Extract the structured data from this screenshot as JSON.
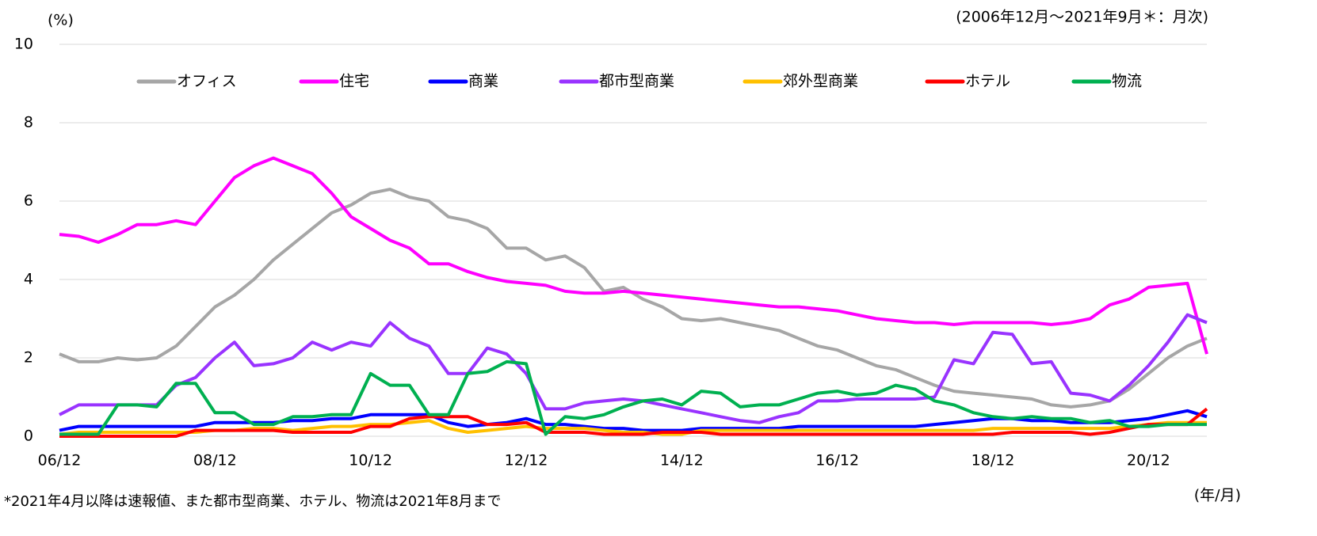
{
  "chart_data": {
    "type": "line",
    "y_unit_label": "(%)",
    "subtitle": "(2006年12月～2021年9月＊：月次)",
    "x_axis_label": "(年/月)",
    "footnote": "*2021年4月以降は速報値、また都市型商業、ホテル、物流は2021年8月まで",
    "categories": [
      "06/12",
      null,
      null,
      null,
      null,
      null,
      null,
      null,
      "08/12",
      null,
      null,
      null,
      null,
      null,
      null,
      null,
      "10/12",
      null,
      null,
      null,
      null,
      null,
      null,
      null,
      "12/12",
      null,
      null,
      null,
      null,
      null,
      null,
      null,
      "14/12",
      null,
      null,
      null,
      null,
      null,
      null,
      null,
      "16/12",
      null,
      null,
      null,
      null,
      null,
      null,
      null,
      "18/12",
      null,
      null,
      null,
      null,
      null,
      null,
      null,
      "20/12",
      null,
      null,
      null
    ],
    "ylim": [
      0,
      10
    ],
    "yticks": [
      0,
      2,
      4,
      6,
      8,
      10
    ],
    "grid": true,
    "legend": "top",
    "series": [
      {
        "name": "オフィス",
        "color": "#a6a6a6",
        "values": [
          2.1,
          1.9,
          1.9,
          2.0,
          1.95,
          2.0,
          2.3,
          2.8,
          3.3,
          3.6,
          4.0,
          4.5,
          4.9,
          5.3,
          5.7,
          5.9,
          6.2,
          6.3,
          6.1,
          6.0,
          5.6,
          5.5,
          5.3,
          4.8,
          4.8,
          4.5,
          4.6,
          4.3,
          3.7,
          3.8,
          3.5,
          3.3,
          3.0,
          2.95,
          3.0,
          2.9,
          2.8,
          2.7,
          2.5,
          2.3,
          2.2,
          2.0,
          1.8,
          1.7,
          1.5,
          1.3,
          1.15,
          1.1,
          1.05,
          1.0,
          0.95,
          0.8,
          0.75,
          0.8,
          0.9,
          1.2,
          1.6,
          2.0,
          2.3,
          2.5
        ]
      },
      {
        "name": "住宅",
        "color": "#ff00ff",
        "values": [
          5.15,
          5.1,
          4.95,
          5.15,
          5.4,
          5.4,
          5.5,
          5.4,
          6.0,
          6.6,
          6.9,
          7.1,
          6.9,
          6.7,
          6.2,
          5.6,
          5.3,
          5.0,
          4.8,
          4.4,
          4.4,
          4.2,
          4.05,
          3.95,
          3.9,
          3.85,
          3.7,
          3.65,
          3.65,
          3.7,
          3.65,
          3.6,
          3.55,
          3.5,
          3.45,
          3.4,
          3.35,
          3.3,
          3.3,
          3.25,
          3.2,
          3.1,
          3.0,
          2.95,
          2.9,
          2.9,
          2.85,
          2.9,
          2.9,
          2.9,
          2.9,
          2.85,
          2.9,
          3.0,
          3.35,
          3.5,
          3.8,
          3.85,
          3.9,
          2.1
        ]
      },
      {
        "name": "商業",
        "color": "#0000ff",
        "values": [
          0.15,
          0.25,
          0.25,
          0.25,
          0.25,
          0.25,
          0.25,
          0.25,
          0.35,
          0.35,
          0.35,
          0.35,
          0.4,
          0.4,
          0.45,
          0.45,
          0.55,
          0.55,
          0.55,
          0.55,
          0.35,
          0.25,
          0.3,
          0.35,
          0.45,
          0.3,
          0.3,
          0.25,
          0.2,
          0.2,
          0.15,
          0.15,
          0.15,
          0.2,
          0.2,
          0.2,
          0.2,
          0.2,
          0.25,
          0.25,
          0.25,
          0.25,
          0.25,
          0.25,
          0.25,
          0.3,
          0.35,
          0.4,
          0.45,
          0.45,
          0.4,
          0.4,
          0.35,
          0.35,
          0.35,
          0.4,
          0.45,
          0.55,
          0.65,
          0.5
        ]
      },
      {
        "name": "都市型商業",
        "color": "#9933ff",
        "values": [
          0.55,
          0.8,
          0.8,
          0.8,
          0.8,
          0.8,
          1.3,
          1.5,
          2.0,
          2.4,
          1.8,
          1.85,
          2.0,
          2.4,
          2.2,
          2.4,
          2.3,
          2.9,
          2.5,
          2.3,
          1.6,
          1.6,
          2.25,
          2.1,
          1.6,
          0.7,
          0.7,
          0.85,
          0.9,
          0.95,
          0.9,
          0.8,
          0.7,
          0.6,
          0.5,
          0.4,
          0.35,
          0.5,
          0.6,
          0.9,
          0.9,
          0.95,
          0.95,
          0.95,
          0.95,
          1.0,
          1.95,
          1.85,
          2.65,
          2.6,
          1.85,
          1.9,
          1.1,
          1.05,
          0.9,
          1.3,
          1.8,
          2.4,
          3.1,
          2.9
        ]
      },
      {
        "name": "郊外型商業",
        "color": "#ffc000",
        "values": [
          0.05,
          0.1,
          0.1,
          0.1,
          0.1,
          0.1,
          0.1,
          0.1,
          0.15,
          0.15,
          0.2,
          0.2,
          0.15,
          0.2,
          0.25,
          0.25,
          0.3,
          0.3,
          0.35,
          0.4,
          0.2,
          0.1,
          0.15,
          0.2,
          0.25,
          0.2,
          0.2,
          0.2,
          0.15,
          0.1,
          0.1,
          0.05,
          0.05,
          0.15,
          0.15,
          0.15,
          0.15,
          0.15,
          0.15,
          0.15,
          0.15,
          0.15,
          0.15,
          0.15,
          0.15,
          0.15,
          0.15,
          0.15,
          0.2,
          0.2,
          0.2,
          0.2,
          0.2,
          0.2,
          0.2,
          0.25,
          0.3,
          0.35,
          0.35,
          0.35
        ]
      },
      {
        "name": "ホテル",
        "color": "#ff0000",
        "values": [
          0,
          0,
          0,
          0,
          0,
          0,
          0,
          0.15,
          0.15,
          0.15,
          0.15,
          0.15,
          0.1,
          0.1,
          0.1,
          0.1,
          0.25,
          0.25,
          0.45,
          0.5,
          0.5,
          0.5,
          0.3,
          0.3,
          0.35,
          0.1,
          0.1,
          0.1,
          0.05,
          0.05,
          0.05,
          0.1,
          0.1,
          0.1,
          0.05,
          0.05,
          0.05,
          0.05,
          0.05,
          0.05,
          0.05,
          0.05,
          0.05,
          0.05,
          0.05,
          0.05,
          0.05,
          0.05,
          0.05,
          0.1,
          0.1,
          0.1,
          0.1,
          0.05,
          0.1,
          0.2,
          0.3,
          0.3,
          0.3,
          0.7
        ]
      },
      {
        "name": "物流",
        "color": "#00b050",
        "values": [
          0.05,
          0.05,
          0.05,
          0.8,
          0.8,
          0.75,
          1.35,
          1.35,
          0.6,
          0.6,
          0.3,
          0.3,
          0.5,
          0.5,
          0.55,
          0.55,
          1.6,
          1.3,
          1.3,
          0.55,
          0.55,
          1.6,
          1.65,
          1.9,
          1.85,
          0.05,
          0.5,
          0.45,
          0.55,
          0.75,
          0.9,
          0.95,
          0.8,
          1.15,
          1.1,
          0.75,
          0.8,
          0.8,
          0.95,
          1.1,
          1.15,
          1.05,
          1.1,
          1.3,
          1.2,
          0.9,
          0.8,
          0.6,
          0.5,
          0.45,
          0.5,
          0.45,
          0.45,
          0.35,
          0.4,
          0.25,
          0.25,
          0.3,
          0.3,
          0.3
        ]
      }
    ]
  }
}
